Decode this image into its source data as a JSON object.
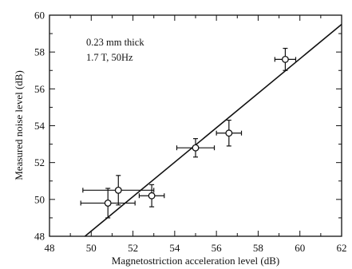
{
  "chart_data": {
    "type": "scatter",
    "xlabel": "Magnetostriction acceleration level (dB)",
    "ylabel": "Measured noise level (dB)",
    "xlim": [
      48,
      62
    ],
    "ylim": [
      48,
      60
    ],
    "xticks": [
      "48",
      "50",
      "52",
      "54",
      "56",
      "58",
      "60",
      "62"
    ],
    "yticks": [
      "48",
      "50",
      "52",
      "54",
      "56",
      "58",
      "60"
    ],
    "annotations": [
      "0.23 mm thick",
      "1.7 T, 50Hz"
    ],
    "grid": false,
    "points": [
      {
        "x": 50.8,
        "y": 49.8,
        "xerr": 1.3,
        "yerr": 0.8
      },
      {
        "x": 51.3,
        "y": 50.5,
        "xerr": 1.7,
        "yerr": 0.8
      },
      {
        "x": 52.9,
        "y": 50.2,
        "xerr": 0.6,
        "yerr": 0.6
      },
      {
        "x": 55.0,
        "y": 52.8,
        "xerr": 0.9,
        "yerr": 0.5
      },
      {
        "x": 56.6,
        "y": 53.6,
        "xerr": 0.6,
        "yerr": 0.7
      },
      {
        "x": 59.3,
        "y": 57.6,
        "xerr": 0.5,
        "yerr": 0.6
      }
    ],
    "fit_line": {
      "x": [
        49.7,
        62.0
      ],
      "y": [
        48.0,
        59.5
      ]
    }
  }
}
